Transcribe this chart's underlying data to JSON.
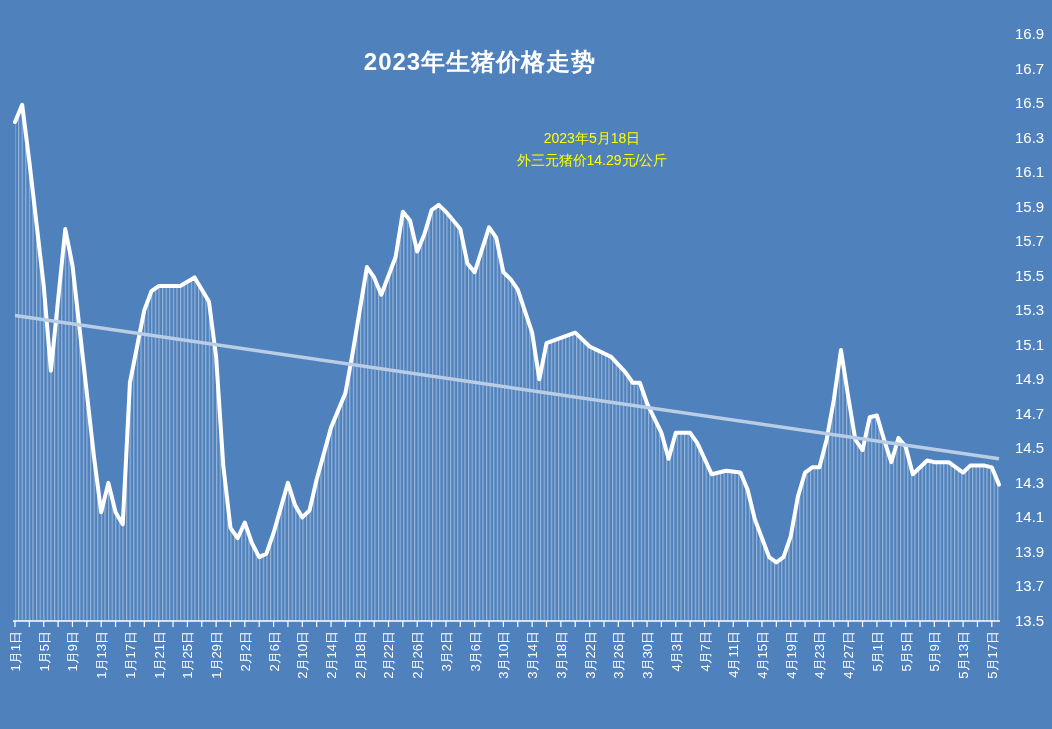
{
  "chart_data": {
    "type": "area",
    "title": "2023年生猪价格走势",
    "annotations": [
      "2023年5月18日",
      "外三元猪价14.29元/公斤"
    ],
    "xlim": [
      "2023-01-01",
      "2023-05-18"
    ],
    "ylim": [
      13.5,
      16.9
    ],
    "yticks": [
      13.5,
      13.7,
      13.9,
      14.1,
      14.3,
      14.5,
      14.7,
      14.9,
      15.1,
      15.3,
      15.5,
      15.7,
      15.9,
      16.1,
      16.3,
      16.5,
      16.7,
      16.9
    ],
    "xticks": [
      {
        "value": "2023-01-01",
        "label": "1月1日"
      },
      {
        "value": "2023-01-03",
        "label": null
      },
      {
        "value": "2023-01-05",
        "label": "1月5日"
      },
      {
        "value": "2023-01-07",
        "label": null
      },
      {
        "value": "2023-01-09",
        "label": "1月9日"
      },
      {
        "value": "2023-01-11",
        "label": null
      },
      {
        "value": "2023-01-13",
        "label": "1月13日"
      },
      {
        "value": "2023-01-15",
        "label": null
      },
      {
        "value": "2023-01-17",
        "label": "1月17日"
      },
      {
        "value": "2023-01-19",
        "label": null
      },
      {
        "value": "2023-01-21",
        "label": "1月21日"
      },
      {
        "value": "2023-01-23",
        "label": null
      },
      {
        "value": "2023-01-25",
        "label": "1月25日"
      },
      {
        "value": "2023-01-27",
        "label": null
      },
      {
        "value": "2023-01-29",
        "label": "1月29日"
      },
      {
        "value": "2023-01-31",
        "label": null
      },
      {
        "value": "2023-02-02",
        "label": "2月2日"
      },
      {
        "value": "2023-02-04",
        "label": null
      },
      {
        "value": "2023-02-06",
        "label": "2月6日"
      },
      {
        "value": "2023-02-08",
        "label": null
      },
      {
        "value": "2023-02-10",
        "label": "2月10日"
      },
      {
        "value": "2023-02-12",
        "label": null
      },
      {
        "value": "2023-02-14",
        "label": "2月14日"
      },
      {
        "value": "2023-02-16",
        "label": null
      },
      {
        "value": "2023-02-18",
        "label": "2月18日"
      },
      {
        "value": "2023-02-20",
        "label": null
      },
      {
        "value": "2023-02-22",
        "label": "2月22日"
      },
      {
        "value": "2023-02-24",
        "label": null
      },
      {
        "value": "2023-02-26",
        "label": "2月26日"
      },
      {
        "value": "2023-02-28",
        "label": null
      },
      {
        "value": "2023-03-02",
        "label": "3月2日"
      },
      {
        "value": "2023-03-04",
        "label": null
      },
      {
        "value": "2023-03-06",
        "label": "3月6日"
      },
      {
        "value": "2023-03-08",
        "label": null
      },
      {
        "value": "2023-03-10",
        "label": "3月10日"
      },
      {
        "value": "2023-03-12",
        "label": null
      },
      {
        "value": "2023-03-14",
        "label": "3月14日"
      },
      {
        "value": "2023-03-16",
        "label": null
      },
      {
        "value": "2023-03-18",
        "label": "3月18日"
      },
      {
        "value": "2023-03-20",
        "label": null
      },
      {
        "value": "2023-03-22",
        "label": "3月22日"
      },
      {
        "value": "2023-03-24",
        "label": null
      },
      {
        "value": "2023-03-26",
        "label": "3月26日"
      },
      {
        "value": "2023-03-28",
        "label": null
      },
      {
        "value": "2023-03-30",
        "label": "3月30日"
      },
      {
        "value": "2023-04-01",
        "label": null
      },
      {
        "value": "2023-04-03",
        "label": "4月3日"
      },
      {
        "value": "2023-04-05",
        "label": null
      },
      {
        "value": "2023-04-07",
        "label": "4月7日"
      },
      {
        "value": "2023-04-09",
        "label": null
      },
      {
        "value": "2023-04-11",
        "label": "4月11日"
      },
      {
        "value": "2023-04-13",
        "label": null
      },
      {
        "value": "2023-04-15",
        "label": "4月15日"
      },
      {
        "value": "2023-04-17",
        "label": null
      },
      {
        "value": "2023-04-19",
        "label": "4月19日"
      },
      {
        "value": "2023-04-21",
        "label": null
      },
      {
        "value": "2023-04-23",
        "label": "4月23日"
      },
      {
        "value": "2023-04-25",
        "label": null
      },
      {
        "value": "2023-04-27",
        "label": "4月27日"
      },
      {
        "value": "2023-04-29",
        "label": null
      },
      {
        "value": "2023-05-01",
        "label": "5月1日"
      },
      {
        "value": "2023-05-03",
        "label": null
      },
      {
        "value": "2023-05-05",
        "label": "5月5日"
      },
      {
        "value": "2023-05-07",
        "label": null
      },
      {
        "value": "2023-05-09",
        "label": "5月9日"
      },
      {
        "value": "2023-05-11",
        "label": null
      },
      {
        "value": "2023-05-13",
        "label": "5月13日"
      },
      {
        "value": "2023-05-15",
        "label": null
      },
      {
        "value": "2023-05-17",
        "label": "5月17日"
      }
    ],
    "series": [
      {
        "color": "#ffffff",
        "x": [
          "2023-01-01",
          "2023-01-02",
          "2023-01-03",
          "2023-01-05",
          "2023-01-06",
          "2023-01-08",
          "2023-01-09",
          "2023-01-10",
          "2023-01-12",
          "2023-01-13",
          "2023-01-14",
          "2023-01-15",
          "2023-01-16",
          "2023-01-17",
          "2023-01-19",
          "2023-01-20",
          "2023-01-21",
          "2023-01-24",
          "2023-01-26",
          "2023-01-28",
          "2023-01-29",
          "2023-01-30",
          "2023-01-31",
          "2023-02-01",
          "2023-02-02",
          "2023-02-03",
          "2023-02-04",
          "2023-02-05",
          "2023-02-06",
          "2023-02-08",
          "2023-02-09",
          "2023-02-10",
          "2023-02-11",
          "2023-02-12",
          "2023-02-14",
          "2023-02-16",
          "2023-02-17",
          "2023-02-19",
          "2023-02-20",
          "2023-02-21",
          "2023-02-23",
          "2023-02-24",
          "2023-02-25",
          "2023-02-26",
          "2023-02-27",
          "2023-02-28",
          "2023-03-01",
          "2023-03-02",
          "2023-03-04",
          "2023-03-05",
          "2023-03-06",
          "2023-03-08",
          "2023-03-09",
          "2023-03-10",
          "2023-03-11",
          "2023-03-12",
          "2023-03-14",
          "2023-03-15",
          "2023-03-16",
          "2023-03-20",
          "2023-03-22",
          "2023-03-25",
          "2023-03-27",
          "2023-03-28",
          "2023-03-29",
          "2023-03-30",
          "2023-04-01",
          "2023-04-02",
          "2023-04-03",
          "2023-04-05",
          "2023-04-06",
          "2023-04-08",
          "2023-04-10",
          "2023-04-12",
          "2023-04-13",
          "2023-04-14",
          "2023-04-16",
          "2023-04-17",
          "2023-04-18",
          "2023-04-19",
          "2023-04-20",
          "2023-04-21",
          "2023-04-22",
          "2023-04-23",
          "2023-04-24",
          "2023-04-25",
          "2023-04-26",
          "2023-04-27",
          "2023-04-28",
          "2023-04-29",
          "2023-04-30",
          "2023-05-01",
          "2023-05-02",
          "2023-05-03",
          "2023-05-04",
          "2023-05-05",
          "2023-05-06",
          "2023-05-08",
          "2023-05-09",
          "2023-05-11",
          "2023-05-13",
          "2023-05-14",
          "2023-05-16",
          "2023-05-17",
          "2023-05-18"
        ],
        "values": [
          16.39,
          16.49,
          16.16,
          15.44,
          14.95,
          15.77,
          15.56,
          15.19,
          14.45,
          14.13,
          14.3,
          14.13,
          14.06,
          14.88,
          15.3,
          15.41,
          15.44,
          15.44,
          15.49,
          15.35,
          15.03,
          14.4,
          14.04,
          13.98,
          14.07,
          13.95,
          13.87,
          13.89,
          14.01,
          14.3,
          14.17,
          14.1,
          14.14,
          14.32,
          14.62,
          14.82,
          15.05,
          15.55,
          15.49,
          15.39,
          15.61,
          15.87,
          15.82,
          15.64,
          15.74,
          15.88,
          15.91,
          15.87,
          15.77,
          15.57,
          15.52,
          15.78,
          15.72,
          15.52,
          15.48,
          15.42,
          15.17,
          14.9,
          15.11,
          15.17,
          15.09,
          15.03,
          14.94,
          14.88,
          14.88,
          14.76,
          14.59,
          14.44,
          14.59,
          14.59,
          14.53,
          14.35,
          14.37,
          14.36,
          14.26,
          14.09,
          13.87,
          13.84,
          13.87,
          13.99,
          14.22,
          14.36,
          14.39,
          14.39,
          14.55,
          14.78,
          15.07,
          14.8,
          14.55,
          14.49,
          14.68,
          14.69,
          14.55,
          14.42,
          14.56,
          14.51,
          14.35,
          14.43,
          14.42,
          14.42,
          14.36,
          14.4,
          14.4,
          14.39,
          14.29
        ]
      },
      {
        "type": "line",
        "color": "#b9cde5",
        "x": [
          "2023-01-01",
          "2023-05-18"
        ],
        "values": [
          15.27,
          14.44
        ]
      }
    ],
    "grid": false,
    "marker": "none",
    "line_style": "solid"
  }
}
